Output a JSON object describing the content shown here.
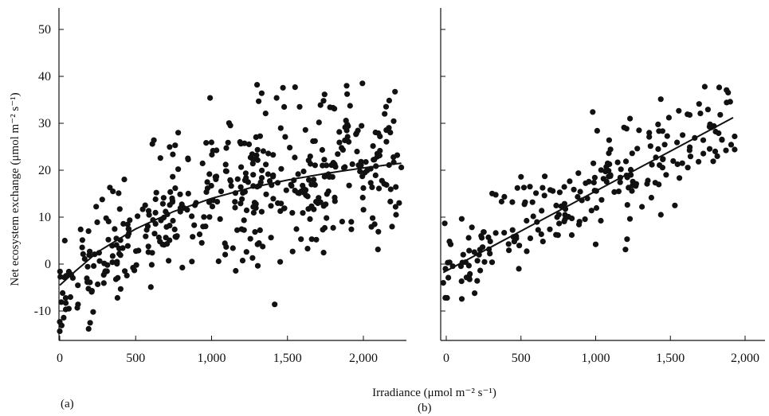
{
  "figure": {
    "xlabel": "Irradiance (μmol m⁻² s⁻¹)",
    "ylabel": "Net ecosystem exchange (μmol m⁻² s⁻¹)"
  },
  "chart_data": [
    {
      "type": "scatter",
      "panel_label": "(a)",
      "xlim": [
        0,
        2250
      ],
      "ylim": [
        -15,
        54
      ],
      "x_ticks": [
        0,
        500,
        1000,
        1500,
        2000
      ],
      "x_tick_labels": [
        "0",
        "500",
        "1,000",
        "1,500",
        "2,000"
      ],
      "y_ticks": [
        -10,
        0,
        10,
        20,
        30,
        40,
        50
      ],
      "y_tick_labels": [
        "-10",
        "0",
        "10",
        "20",
        "30",
        "40",
        "50"
      ],
      "series_count": 420,
      "seed": 7,
      "fit": {
        "model": "saturating",
        "x": [
          0,
          100,
          250,
          500,
          750,
          1000,
          1250,
          1500,
          1750,
          2000,
          2250
        ],
        "y": [
          -4.5,
          -1.6,
          2.6,
          7.5,
          11.2,
          14.0,
          16.2,
          17.9,
          19.3,
          20.5,
          21.5
        ]
      },
      "points": [
        [
          0,
          -14.3
        ],
        [
          0,
          -12.3
        ],
        [
          10,
          -8.1
        ],
        [
          40,
          -8.3
        ],
        [
          60,
          -9.5
        ],
        [
          120,
          -8.6
        ],
        [
          190,
          -13.8
        ],
        [
          200,
          -12.5
        ],
        [
          220,
          -10.2
        ],
        [
          250,
          -4.3
        ],
        [
          290,
          -2.3
        ],
        [
          300,
          -1.5
        ],
        [
          330,
          16.3
        ],
        [
          350,
          15.5
        ],
        [
          380,
          -7.2
        ],
        [
          400,
          5.1
        ],
        [
          600,
          -4.9
        ],
        [
          610,
          25.6
        ],
        [
          620,
          26.4
        ],
        [
          760,
          25.3
        ],
        [
          780,
          28.0
        ],
        [
          990,
          35.4
        ],
        [
          1230,
          2.6
        ],
        [
          1270,
          1.3
        ],
        [
          1300,
          38.2
        ],
        [
          1310,
          34.7
        ],
        [
          1330,
          36.4
        ],
        [
          1550,
          37.7
        ],
        [
          1580,
          33.5
        ],
        [
          1660,
          5.3
        ],
        [
          1690,
          5.2
        ],
        [
          1780,
          33.4
        ],
        [
          1800,
          33.3
        ],
        [
          1890,
          38.0
        ],
        [
          1920,
          9.0
        ],
        [
          2000,
          16.2
        ],
        [
          2140,
          32.0
        ],
        [
          2200,
          21.7
        ],
        [
          2250,
          20.6
        ]
      ]
    },
    {
      "type": "scatter",
      "panel_label": "(b)",
      "xlim": [
        -20,
        2150
      ],
      "ylim": [
        -15,
        54
      ],
      "x_ticks": [
        0,
        500,
        1000,
        1500,
        2000
      ],
      "x_tick_labels": [
        "0",
        "500",
        "1,000",
        "1,500",
        "2,000"
      ],
      "series_count": 210,
      "seed": 11,
      "fit": {
        "model": "linear",
        "x": [
          -20,
          1920
        ],
        "y": [
          -1.8,
          31.2
        ]
      },
      "points": [
        [
          -20,
          -4.0
        ],
        [
          10,
          0.3
        ],
        [
          150,
          5.6
        ],
        [
          190,
          -6.2
        ],
        [
          370,
          13.3
        ],
        [
          500,
          18.6
        ],
        [
          520,
          16.3
        ],
        [
          560,
          16.5
        ],
        [
          980,
          32.4
        ],
        [
          1000,
          4.2
        ],
        [
          1010,
          28.4
        ],
        [
          1090,
          26.4
        ],
        [
          1190,
          29.1
        ],
        [
          1210,
          5.3
        ],
        [
          1230,
          31.0
        ],
        [
          1290,
          28.5
        ],
        [
          1310,
          12.2
        ],
        [
          1490,
          31.2
        ],
        [
          1530,
          12.5
        ],
        [
          1730,
          37.8
        ],
        [
          1800,
          24.0
        ],
        [
          1900,
          34.6
        ],
        [
          1930,
          24.4
        ],
        [
          1930,
          27.2
        ]
      ]
    }
  ]
}
